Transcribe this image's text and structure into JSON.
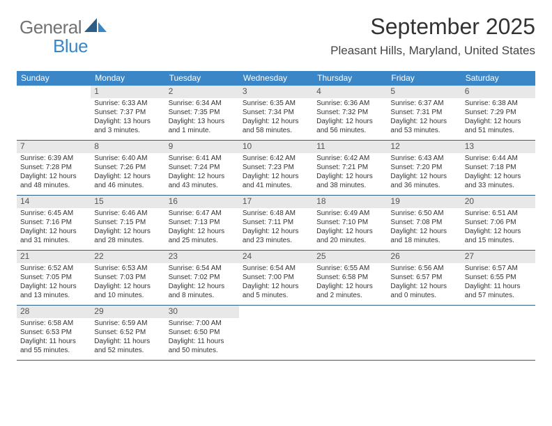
{
  "logo": {
    "text1": "General",
    "text2": "Blue",
    "color_gray": "#727272",
    "color_blue": "#3b86c6"
  },
  "header": {
    "month_title": "September 2025",
    "location": "Pleasant Hills, Maryland, United States"
  },
  "styling": {
    "header_bar_color": "#3b86c6",
    "header_bar_text_color": "#ffffff",
    "row_divider_color": "#2e5e86",
    "daynum_bg": "#e8e8e8",
    "body_text_color": "#333333",
    "page_bg": "#ffffff",
    "body_font_size_pt": 7.5,
    "title_font_size_pt": 24,
    "location_font_size_pt": 13,
    "dow_font_size_pt": 9,
    "daynum_font_size_pt": 9
  },
  "days_of_week": [
    "Sunday",
    "Monday",
    "Tuesday",
    "Wednesday",
    "Thursday",
    "Friday",
    "Saturday"
  ],
  "weeks": [
    [
      {
        "n": "",
        "sunrise": "",
        "sunset": "",
        "daylight": ""
      },
      {
        "n": "1",
        "sunrise": "6:33 AM",
        "sunset": "7:37 PM",
        "daylight": "13 hours and 3 minutes."
      },
      {
        "n": "2",
        "sunrise": "6:34 AM",
        "sunset": "7:35 PM",
        "daylight": "13 hours and 1 minute."
      },
      {
        "n": "3",
        "sunrise": "6:35 AM",
        "sunset": "7:34 PM",
        "daylight": "12 hours and 58 minutes."
      },
      {
        "n": "4",
        "sunrise": "6:36 AM",
        "sunset": "7:32 PM",
        "daylight": "12 hours and 56 minutes."
      },
      {
        "n": "5",
        "sunrise": "6:37 AM",
        "sunset": "7:31 PM",
        "daylight": "12 hours and 53 minutes."
      },
      {
        "n": "6",
        "sunrise": "6:38 AM",
        "sunset": "7:29 PM",
        "daylight": "12 hours and 51 minutes."
      }
    ],
    [
      {
        "n": "7",
        "sunrise": "6:39 AM",
        "sunset": "7:28 PM",
        "daylight": "12 hours and 48 minutes."
      },
      {
        "n": "8",
        "sunrise": "6:40 AM",
        "sunset": "7:26 PM",
        "daylight": "12 hours and 46 minutes."
      },
      {
        "n": "9",
        "sunrise": "6:41 AM",
        "sunset": "7:24 PM",
        "daylight": "12 hours and 43 minutes."
      },
      {
        "n": "10",
        "sunrise": "6:42 AM",
        "sunset": "7:23 PM",
        "daylight": "12 hours and 41 minutes."
      },
      {
        "n": "11",
        "sunrise": "6:42 AM",
        "sunset": "7:21 PM",
        "daylight": "12 hours and 38 minutes."
      },
      {
        "n": "12",
        "sunrise": "6:43 AM",
        "sunset": "7:20 PM",
        "daylight": "12 hours and 36 minutes."
      },
      {
        "n": "13",
        "sunrise": "6:44 AM",
        "sunset": "7:18 PM",
        "daylight": "12 hours and 33 minutes."
      }
    ],
    [
      {
        "n": "14",
        "sunrise": "6:45 AM",
        "sunset": "7:16 PM",
        "daylight": "12 hours and 31 minutes."
      },
      {
        "n": "15",
        "sunrise": "6:46 AM",
        "sunset": "7:15 PM",
        "daylight": "12 hours and 28 minutes."
      },
      {
        "n": "16",
        "sunrise": "6:47 AM",
        "sunset": "7:13 PM",
        "daylight": "12 hours and 25 minutes."
      },
      {
        "n": "17",
        "sunrise": "6:48 AM",
        "sunset": "7:11 PM",
        "daylight": "12 hours and 23 minutes."
      },
      {
        "n": "18",
        "sunrise": "6:49 AM",
        "sunset": "7:10 PM",
        "daylight": "12 hours and 20 minutes."
      },
      {
        "n": "19",
        "sunrise": "6:50 AM",
        "sunset": "7:08 PM",
        "daylight": "12 hours and 18 minutes."
      },
      {
        "n": "20",
        "sunrise": "6:51 AM",
        "sunset": "7:06 PM",
        "daylight": "12 hours and 15 minutes."
      }
    ],
    [
      {
        "n": "21",
        "sunrise": "6:52 AM",
        "sunset": "7:05 PM",
        "daylight": "12 hours and 13 minutes."
      },
      {
        "n": "22",
        "sunrise": "6:53 AM",
        "sunset": "7:03 PM",
        "daylight": "12 hours and 10 minutes."
      },
      {
        "n": "23",
        "sunrise": "6:54 AM",
        "sunset": "7:02 PM",
        "daylight": "12 hours and 8 minutes."
      },
      {
        "n": "24",
        "sunrise": "6:54 AM",
        "sunset": "7:00 PM",
        "daylight": "12 hours and 5 minutes."
      },
      {
        "n": "25",
        "sunrise": "6:55 AM",
        "sunset": "6:58 PM",
        "daylight": "12 hours and 2 minutes."
      },
      {
        "n": "26",
        "sunrise": "6:56 AM",
        "sunset": "6:57 PM",
        "daylight": "12 hours and 0 minutes."
      },
      {
        "n": "27",
        "sunrise": "6:57 AM",
        "sunset": "6:55 PM",
        "daylight": "11 hours and 57 minutes."
      }
    ],
    [
      {
        "n": "28",
        "sunrise": "6:58 AM",
        "sunset": "6:53 PM",
        "daylight": "11 hours and 55 minutes."
      },
      {
        "n": "29",
        "sunrise": "6:59 AM",
        "sunset": "6:52 PM",
        "daylight": "11 hours and 52 minutes."
      },
      {
        "n": "30",
        "sunrise": "7:00 AM",
        "sunset": "6:50 PM",
        "daylight": "11 hours and 50 minutes."
      },
      {
        "n": "",
        "sunrise": "",
        "sunset": "",
        "daylight": ""
      },
      {
        "n": "",
        "sunrise": "",
        "sunset": "",
        "daylight": ""
      },
      {
        "n": "",
        "sunrise": "",
        "sunset": "",
        "daylight": ""
      },
      {
        "n": "",
        "sunrise": "",
        "sunset": "",
        "daylight": ""
      }
    ]
  ],
  "labels": {
    "sunrise": "Sunrise:",
    "sunset": "Sunset:",
    "daylight": "Daylight:"
  }
}
